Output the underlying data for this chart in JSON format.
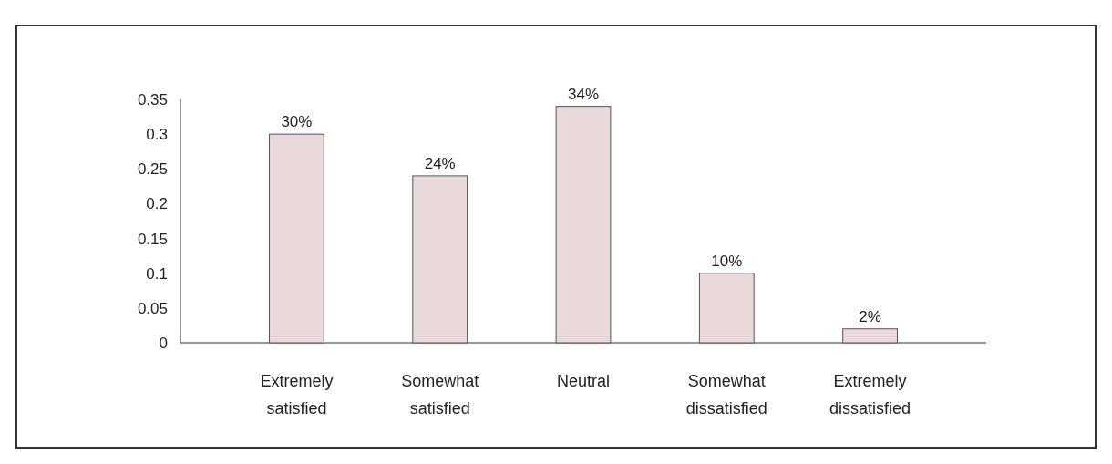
{
  "chart_data": {
    "type": "bar",
    "categories": [
      "Extremely satisfied",
      "Somewhat satisfied",
      "Neutral",
      "Somewhat dissatisfied",
      "Extremely dissatisfied"
    ],
    "values": [
      0.3,
      0.24,
      0.34,
      0.1,
      0.02
    ],
    "value_labels": [
      "30%",
      "24%",
      "34%",
      "10%",
      "2%"
    ],
    "color": "#e9d9da",
    "ylim": [
      0,
      0.35
    ],
    "yticks": [
      0,
      0.05,
      0.1,
      0.15,
      0.2,
      0.25,
      0.3,
      0.35
    ],
    "grid": false
  }
}
